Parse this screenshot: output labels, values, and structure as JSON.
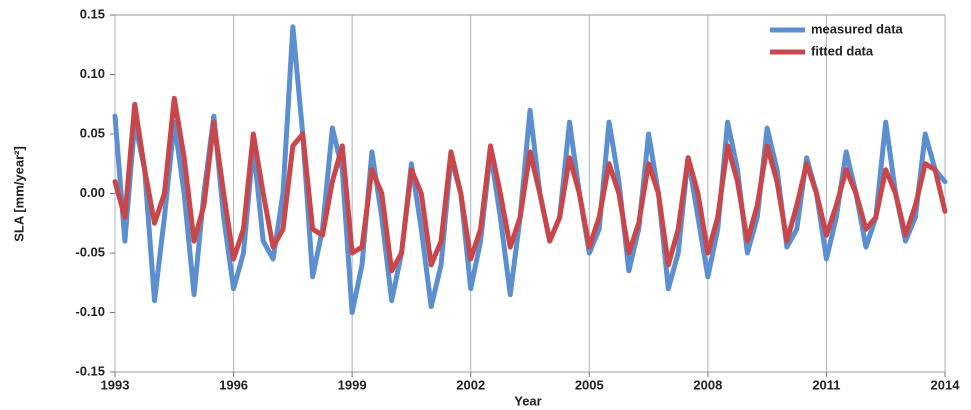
{
  "chart_data": {
    "type": "line",
    "xlabel": "Year",
    "ylabel": "SLA [mm/year²]",
    "x": [
      1993,
      1993.25,
      1993.5,
      1993.75,
      1994,
      1994.25,
      1994.5,
      1994.75,
      1995,
      1995.25,
      1995.5,
      1995.75,
      1996,
      1996.25,
      1996.5,
      1996.75,
      1997,
      1997.25,
      1997.5,
      1997.75,
      1998,
      1998.25,
      1998.5,
      1998.75,
      1999,
      1999.25,
      1999.5,
      1999.75,
      2000,
      2000.25,
      2000.5,
      2000.75,
      2001,
      2001.25,
      2001.5,
      2001.75,
      2002,
      2002.25,
      2002.5,
      2002.75,
      2003,
      2003.25,
      2003.5,
      2003.75,
      2004,
      2004.25,
      2004.5,
      2004.75,
      2005,
      2005.25,
      2005.5,
      2005.75,
      2006,
      2006.25,
      2006.5,
      2006.75,
      2007,
      2007.25,
      2007.5,
      2007.75,
      2008,
      2008.25,
      2008.5,
      2008.75,
      2009,
      2009.25,
      2009.5,
      2009.75,
      2010,
      2010.25,
      2010.5,
      2010.75,
      2011,
      2011.25,
      2011.5,
      2011.75,
      2012,
      2012.25,
      2012.5,
      2012.75,
      2013,
      2013.25,
      2013.5,
      2013.75,
      2014
    ],
    "series": [
      {
        "name": "measured data",
        "color": "#5b8fd0",
        "values": [
          0.065,
          -0.04,
          0.06,
          0.02,
          -0.09,
          -0.02,
          0.06,
          0.0,
          -0.085,
          0.0,
          0.065,
          -0.02,
          -0.08,
          -0.05,
          0.04,
          -0.04,
          -0.055,
          0.0,
          0.14,
          0.05,
          -0.07,
          -0.03,
          0.055,
          0.02,
          -0.1,
          -0.06,
          0.035,
          -0.02,
          -0.09,
          -0.05,
          0.025,
          -0.03,
          -0.095,
          -0.06,
          0.03,
          0.0,
          -0.08,
          -0.04,
          0.035,
          -0.02,
          -0.085,
          -0.02,
          0.07,
          0.0,
          -0.04,
          -0.02,
          0.06,
          0.0,
          -0.05,
          -0.03,
          0.06,
          0.01,
          -0.065,
          -0.03,
          0.05,
          0.0,
          -0.08,
          -0.05,
          0.03,
          -0.02,
          -0.07,
          -0.03,
          0.06,
          0.02,
          -0.05,
          -0.02,
          0.055,
          0.02,
          -0.045,
          -0.03,
          0.03,
          0.0,
          -0.055,
          -0.02,
          0.035,
          0.0,
          -0.045,
          -0.02,
          0.06,
          0.0,
          -0.04,
          -0.02,
          0.05,
          0.02,
          0.01
        ]
      },
      {
        "name": "fitted data",
        "color": "#c9474a",
        "values": [
          0.01,
          -0.02,
          0.075,
          0.02,
          -0.025,
          0.0,
          0.08,
          0.03,
          -0.04,
          -0.01,
          0.06,
          0.0,
          -0.055,
          -0.03,
          0.05,
          0.0,
          -0.045,
          -0.03,
          0.04,
          0.05,
          -0.03,
          -0.035,
          0.01,
          0.04,
          -0.05,
          -0.045,
          0.02,
          0.0,
          -0.065,
          -0.05,
          0.02,
          0.0,
          -0.06,
          -0.04,
          0.035,
          0.0,
          -0.055,
          -0.03,
          0.04,
          0.0,
          -0.045,
          -0.02,
          0.035,
          0.0,
          -0.04,
          -0.02,
          0.03,
          0.0,
          -0.045,
          -0.02,
          0.025,
          0.0,
          -0.05,
          -0.025,
          0.025,
          0.0,
          -0.06,
          -0.03,
          0.03,
          0.0,
          -0.05,
          -0.02,
          0.04,
          0.01,
          -0.04,
          -0.01,
          0.04,
          0.01,
          -0.04,
          -0.01,
          0.025,
          0.0,
          -0.035,
          -0.01,
          0.02,
          0.0,
          -0.03,
          -0.02,
          0.02,
          0.0,
          -0.035,
          -0.01,
          0.025,
          0.02,
          -0.015
        ]
      }
    ],
    "xlim": [
      1993,
      2014
    ],
    "xticks": [
      1993,
      1996,
      1999,
      2002,
      2005,
      2008,
      2011,
      2014
    ],
    "ylim": [
      -0.15,
      0.15
    ],
    "yticks": [
      -0.15,
      {
        "value": -0.1,
        "label": "-0.10"
      },
      -0.05,
      {
        "value": 0,
        "label": "0.00"
      },
      0.05,
      {
        "value": 0.1,
        "label": "0.10"
      },
      0.15
    ],
    "grid": "x",
    "legend": "upper right"
  }
}
